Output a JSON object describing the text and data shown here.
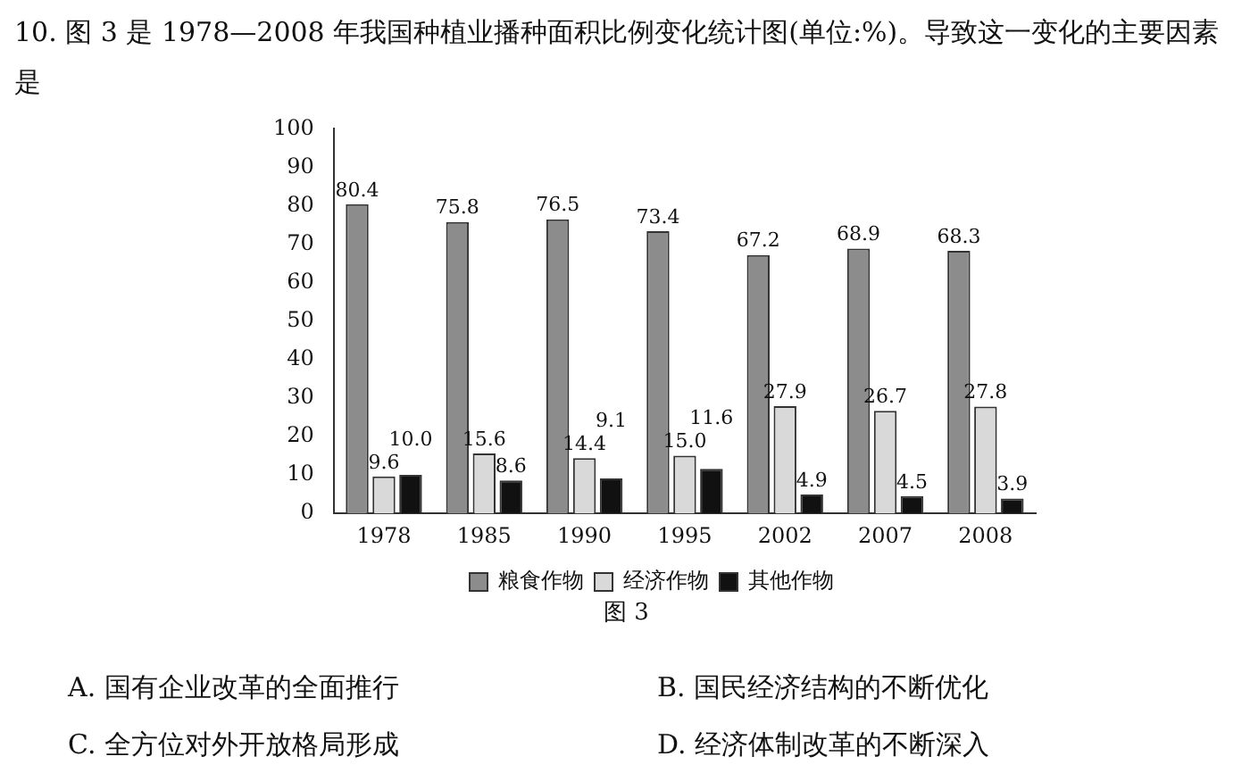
{
  "chart_data": {
    "type": "bar",
    "title": "10. 图 3 是 1978—2008 年我国种植业播种面积比例变化统计图(单位:%)。导致这一变化的主要因素是",
    "categories": [
      "1978",
      "1985",
      "1990",
      "1995",
      "2002",
      "2007",
      "2008"
    ],
    "series": [
      {
        "name": "粮食作物",
        "color": "#8c8c8c",
        "values": [
          80.4,
          75.8,
          76.5,
          73.4,
          67.2,
          68.9,
          68.3
        ],
        "value_labels": [
          "80.4",
          "75.8",
          "76.5",
          "73.4",
          "67.2",
          "68.9",
          "68.3"
        ]
      },
      {
        "name": "经济作物",
        "color": "#d9d9d9",
        "values": [
          9.6,
          15.6,
          14.4,
          15.0,
          27.9,
          26.7,
          27.8
        ],
        "value_labels": [
          "9.6",
          "15.6",
          "14.4",
          "15.0",
          "27.9",
          "26.7",
          "27.8"
        ]
      },
      {
        "name": "其他作物",
        "color": "#111111",
        "values": [
          10.0,
          8.6,
          9.1,
          11.6,
          4.9,
          4.5,
          3.9
        ],
        "value_labels": [
          "10.0",
          "8.6",
          "9.1",
          "11.6",
          "4.9",
          "4.5",
          "3.9"
        ]
      }
    ],
    "ylim": [
      0,
      100
    ],
    "yticks": [
      0,
      10,
      20,
      30,
      40,
      50,
      60,
      70,
      80,
      90,
      100
    ],
    "grid": false,
    "legend": "bottom",
    "annotations": [
      "图 3",
      "A. 国有企业改革的全面推行",
      "B. 国民经济结构的不断优化",
      "C. 全方位对外开放格局形成",
      "D. 经济体制改革的不断深入"
    ]
  }
}
